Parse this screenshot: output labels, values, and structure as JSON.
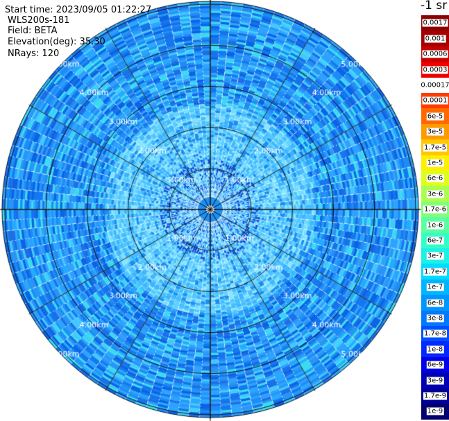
{
  "header": {
    "start_time": "Start time: 2023/09/05 01:22:27",
    "instrument": "WLS200s-181",
    "field": "Field: BETA",
    "elevation": "Elevation(deg): 35.30",
    "nrays": "NRays: 120"
  },
  "unit": "-1 sr",
  "range_rings": [
    "1.00km",
    "2.00km",
    "3.00km",
    "4.00km",
    "5.00km"
  ],
  "nrays_count": 120,
  "colorbar": [
    {
      "label": "0.0017",
      "color": "#8b0000"
    },
    {
      "label": "0.001",
      "color": "#a40000"
    },
    {
      "label": "0.0006",
      "color": "#c80000"
    },
    {
      "label": "0.0003",
      "color": "#ec0000"
    },
    {
      "label": "0.00017",
      "color": "#ffffff"
    },
    {
      "label": "0.0001",
      "color": "#ff3c00"
    },
    {
      "label": "6e-5",
      "color": "#ff6a00"
    },
    {
      "label": "3e-5",
      "color": "#ff9a00"
    },
    {
      "label": "1.7e-5",
      "color": "#ffc800"
    },
    {
      "label": "1e-5",
      "color": "#fff000"
    },
    {
      "label": "6e-6",
      "color": "#dcff1e"
    },
    {
      "label": "3e-6",
      "color": "#aaff50"
    },
    {
      "label": "1.7e-6",
      "color": "#82ff78"
    },
    {
      "label": "1e-6",
      "color": "#5affa0"
    },
    {
      "label": "6e-7",
      "color": "#32ffc8"
    },
    {
      "label": "3e-7",
      "color": "#1ef0e6"
    },
    {
      "label": "1.7e-7",
      "color": "#00dcff"
    },
    {
      "label": "1e-7",
      "color": "#00b4ff"
    },
    {
      "label": "6e-8",
      "color": "#0096ff"
    },
    {
      "label": "3e-8",
      "color": "#0078ff"
    },
    {
      "label": "1.7e-8",
      "color": "#0050ff"
    },
    {
      "label": "1e-8",
      "color": "#0028ff"
    },
    {
      "label": "6e-9",
      "color": "#0000e6"
    },
    {
      "label": "3e-9",
      "color": "#0000b4"
    },
    {
      "label": "1.7e-9",
      "color": "#000096"
    },
    {
      "label": "1e-9",
      "color": "#00006e"
    }
  ]
}
